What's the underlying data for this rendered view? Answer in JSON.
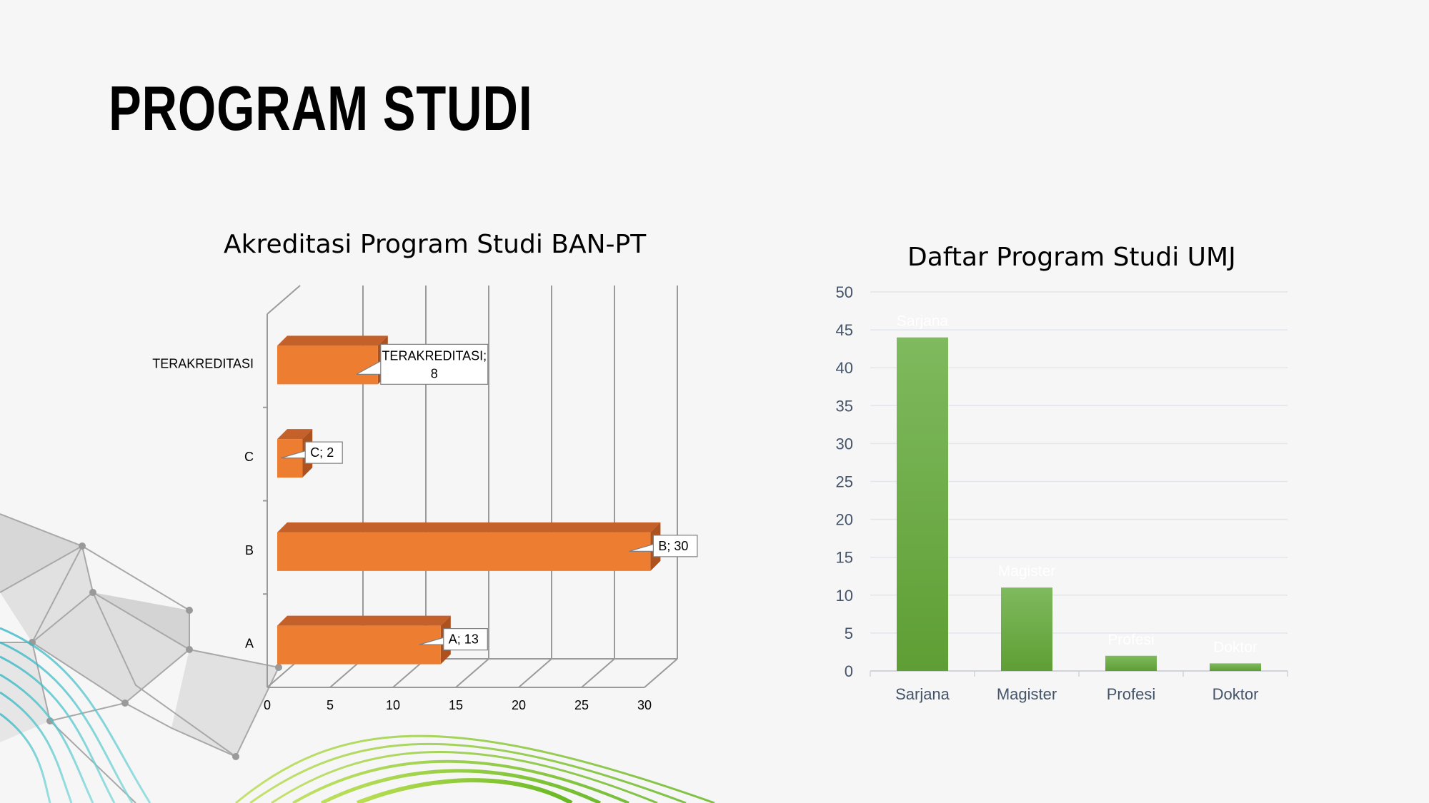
{
  "slide": {
    "title": "PROGRAM STUDI"
  },
  "chart_data": [
    {
      "type": "bar",
      "orientation": "horizontal",
      "style": "3d",
      "title": "Akreditasi Program Studi BAN-PT",
      "categories": [
        "A",
        "B",
        "C",
        "TERAKREDITASI"
      ],
      "values": [
        13,
        30,
        2,
        8
      ],
      "data_labels": [
        "A; 13",
        "B; 30",
        "C; 2",
        "TERAKREDITASI; 8"
      ],
      "xlim": [
        0,
        30
      ],
      "x_ticks": [
        0,
        5,
        10,
        15,
        20,
        25,
        30
      ],
      "grid": true,
      "colors": {
        "bar": "#ed7d31",
        "bar_top": "#c4602a",
        "bar_side": "#ad521f"
      }
    },
    {
      "type": "bar",
      "title": "Daftar Program Studi UMJ",
      "categories": [
        "Sarjana",
        "Magister",
        "Profesi",
        "Doktor"
      ],
      "values": [
        44,
        11,
        2,
        1
      ],
      "data_labels": [
        "Sarjana",
        "Magister",
        "Profesi",
        "Doktor"
      ],
      "ylim": [
        0,
        50
      ],
      "y_ticks": [
        0,
        5,
        10,
        15,
        20,
        25,
        30,
        35,
        40,
        45,
        50
      ],
      "grid": true,
      "colors": {
        "bar_top": "#7fba5e",
        "bar_bottom": "#5e9e34",
        "grid": "#e2e6ea",
        "axis_text": "#44546a"
      }
    }
  ]
}
